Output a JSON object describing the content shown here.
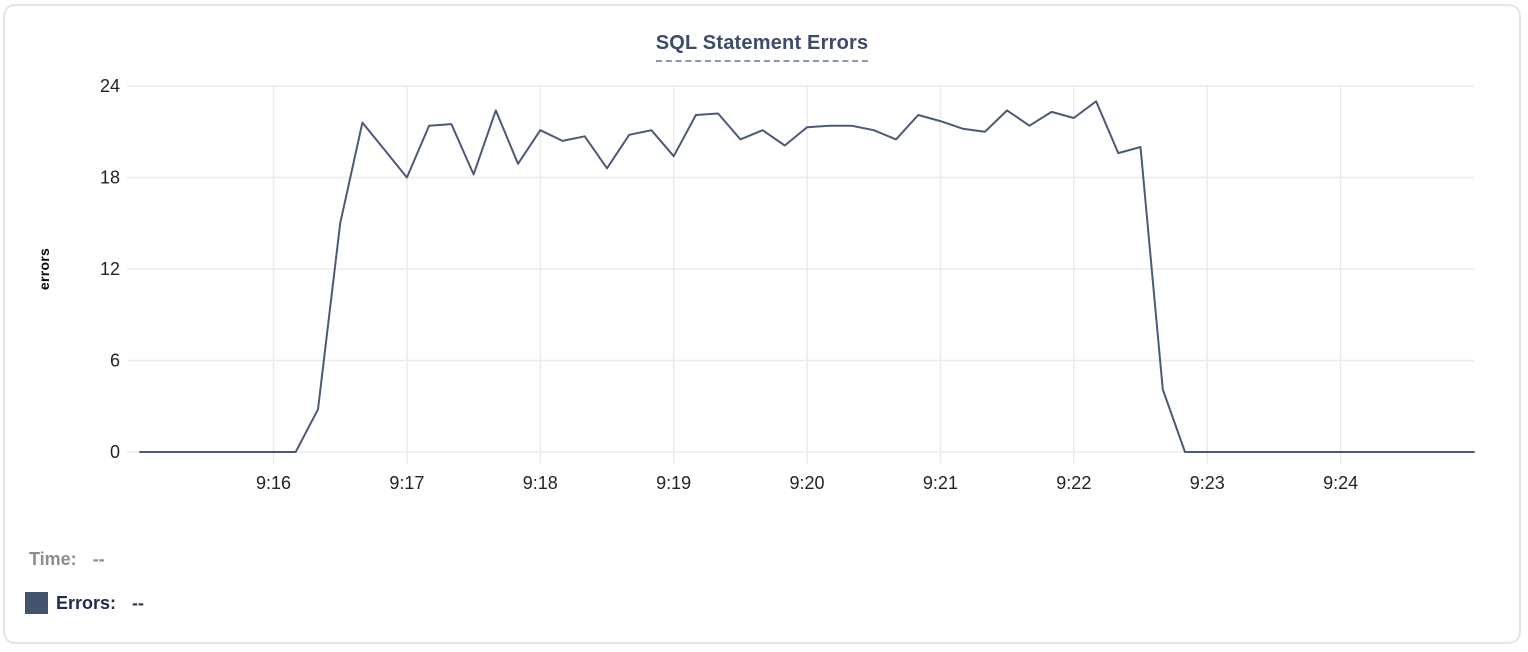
{
  "header": {
    "title": "SQL Statement Errors",
    "title_color": "#3d4b6a",
    "underline_color": "#8d98ae"
  },
  "tooltip": {
    "time_label": "Time:",
    "time_value": "--",
    "errors_label": "Errors:",
    "errors_value": "--",
    "swatch_color": "#45536d"
  },
  "chart_data": {
    "type": "line",
    "title": "SQL Statement Errors",
    "xlabel": "",
    "ylabel": "errors",
    "ylim": [
      0,
      24
    ],
    "y_ticks": [
      0,
      6,
      12,
      18,
      24
    ],
    "x_ticks": [
      "9:16",
      "9:17",
      "9:18",
      "9:19",
      "9:20",
      "9:21",
      "9:22",
      "9:23",
      "9:24"
    ],
    "xlim": [
      "9:14:55",
      "9:25:00"
    ],
    "grid": true,
    "grid_color": "#ebebee",
    "line_color": "#4c5a79",
    "legend_position": "below-left",
    "series": [
      {
        "name": "Errors",
        "points": [
          [
            "9:15:00",
            0
          ],
          [
            "9:15:10",
            0
          ],
          [
            "9:15:20",
            0
          ],
          [
            "9:15:30",
            0
          ],
          [
            "9:15:40",
            0
          ],
          [
            "9:15:50",
            0
          ],
          [
            "9:16:00",
            0
          ],
          [
            "9:16:10",
            0
          ],
          [
            "9:16:20",
            2.8
          ],
          [
            "9:16:30",
            15
          ],
          [
            "9:16:40",
            21.6
          ],
          [
            "9:16:50",
            19.8
          ],
          [
            "9:17:00",
            18
          ],
          [
            "9:17:10",
            21.4
          ],
          [
            "9:17:20",
            21.5
          ],
          [
            "9:17:30",
            18.2
          ],
          [
            "9:17:40",
            22.4
          ],
          [
            "9:17:50",
            18.9
          ],
          [
            "9:18:00",
            21.1
          ],
          [
            "9:18:10",
            20.4
          ],
          [
            "9:18:20",
            20.7
          ],
          [
            "9:18:30",
            18.6
          ],
          [
            "9:18:40",
            20.8
          ],
          [
            "9:18:50",
            21.1
          ],
          [
            "9:19:00",
            19.4
          ],
          [
            "9:19:10",
            22.1
          ],
          [
            "9:19:20",
            22.2
          ],
          [
            "9:19:30",
            20.5
          ],
          [
            "9:19:40",
            21.1
          ],
          [
            "9:19:50",
            20.1
          ],
          [
            "9:20:00",
            21.3
          ],
          [
            "9:20:10",
            21.4
          ],
          [
            "9:20:20",
            21.4
          ],
          [
            "9:20:30",
            21.1
          ],
          [
            "9:20:40",
            20.5
          ],
          [
            "9:20:50",
            22.1
          ],
          [
            "9:21:00",
            21.7
          ],
          [
            "9:21:10",
            21.2
          ],
          [
            "9:21:20",
            21.0
          ],
          [
            "9:21:30",
            22.4
          ],
          [
            "9:21:40",
            21.4
          ],
          [
            "9:21:50",
            22.3
          ],
          [
            "9:22:00",
            21.9
          ],
          [
            "9:22:10",
            23
          ],
          [
            "9:22:20",
            19.6
          ],
          [
            "9:22:30",
            20
          ],
          [
            "9:22:40",
            4.1
          ],
          [
            "9:22:50",
            0
          ],
          [
            "9:23:00",
            0
          ],
          [
            "9:23:10",
            0
          ],
          [
            "9:23:20",
            0
          ],
          [
            "9:23:30",
            0
          ],
          [
            "9:23:40",
            0
          ],
          [
            "9:23:50",
            0
          ],
          [
            "9:24:00",
            0
          ],
          [
            "9:24:10",
            0
          ],
          [
            "9:24:20",
            0
          ],
          [
            "9:24:30",
            0
          ],
          [
            "9:24:40",
            0
          ],
          [
            "9:24:50",
            0
          ],
          [
            "9:25:00",
            0
          ]
        ]
      }
    ]
  }
}
